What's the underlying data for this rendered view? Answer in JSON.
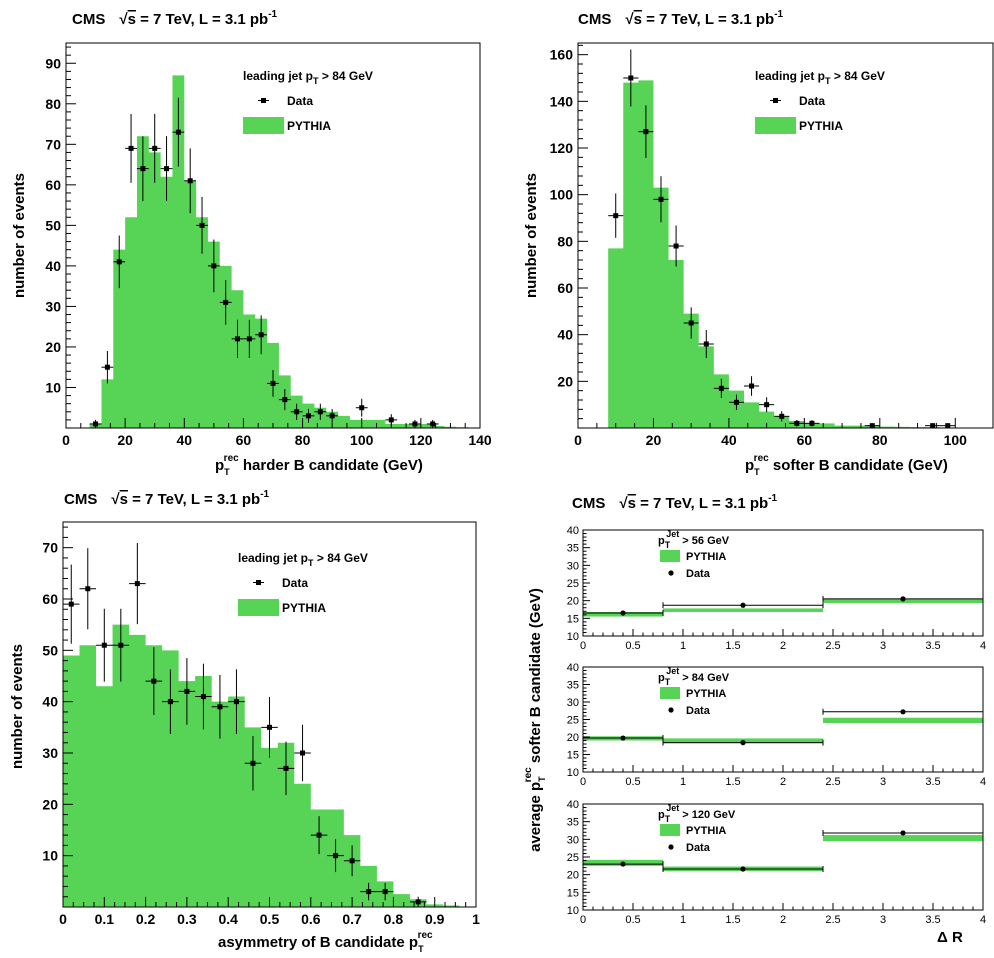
{
  "colors": {
    "mc_fill": "#57d356",
    "data": "#000000",
    "axis": "#000000"
  },
  "chart_data": [
    {
      "type": "bar",
      "id": "harder",
      "header": {
        "exp": "CMS",
        "sqrt": "√",
        "s": "s",
        "rest": " = 7 TeV, L = 3.1 pb",
        "sup": "-1"
      },
      "xlabel": {
        "p": "p",
        "sub": "T",
        "sup": "rec",
        "rest": " harder B candidate (GeV)"
      },
      "ylabel": "number of events",
      "xlim": [
        0,
        140
      ],
      "ylim": [
        0,
        95
      ],
      "xticks": [
        0,
        20,
        40,
        60,
        80,
        100,
        120,
        140
      ],
      "yticks": [
        10,
        20,
        30,
        40,
        50,
        60,
        70,
        80,
        90
      ],
      "legend": {
        "title_pre": "leading jet p",
        "title_sub": "T",
        "title_post": " > 84 GeV",
        "data_label": "Data",
        "mc_label": "PYTHIA",
        "placement": "top-right"
      },
      "mc": {
        "edges": [
          0,
          4,
          8,
          12,
          16,
          20,
          24,
          28,
          32,
          36,
          40,
          44,
          48,
          52,
          56,
          60,
          64,
          68,
          72,
          76,
          80,
          84,
          88,
          92,
          96,
          100,
          104,
          108,
          112,
          116,
          120,
          124,
          128,
          132,
          136,
          140
        ],
        "values": [
          0,
          0,
          1,
          12,
          44,
          52,
          72,
          68,
          62,
          87,
          61,
          52,
          46,
          40,
          34,
          28,
          27,
          21,
          13,
          8,
          6,
          5,
          4,
          3,
          2,
          2,
          2,
          1,
          1,
          1,
          1,
          0.5,
          0.3,
          0.2,
          0
        ]
      },
      "data": [
        {
          "x": 14,
          "y": 15,
          "err": 4,
          "xerr": 2
        },
        {
          "x": 18,
          "y": 41,
          "err": 6.5,
          "xerr": 2
        },
        {
          "x": 22,
          "y": 69,
          "err": 8.5,
          "xerr": 2
        },
        {
          "x": 26,
          "y": 64,
          "err": 8,
          "xerr": 2
        },
        {
          "x": 30,
          "y": 69,
          "err": 8.5,
          "xerr": 2
        },
        {
          "x": 34,
          "y": 64,
          "err": 8,
          "xerr": 2
        },
        {
          "x": 38,
          "y": 73,
          "err": 8.5,
          "xerr": 2
        },
        {
          "x": 42,
          "y": 61,
          "err": 8,
          "xerr": 2
        },
        {
          "x": 46,
          "y": 50,
          "err": 7,
          "xerr": 2
        },
        {
          "x": 50,
          "y": 40,
          "err": 6.5,
          "xerr": 2
        },
        {
          "x": 54,
          "y": 31,
          "err": 5.5,
          "xerr": 2
        },
        {
          "x": 58,
          "y": 22,
          "err": 4.7,
          "xerr": 2
        },
        {
          "x": 62,
          "y": 22,
          "err": 4.7,
          "xerr": 2
        },
        {
          "x": 66,
          "y": 23,
          "err": 4.8,
          "xerr": 2
        },
        {
          "x": 70,
          "y": 11,
          "err": 3.3,
          "xerr": 2
        },
        {
          "x": 74,
          "y": 7,
          "err": 2.6,
          "xerr": 2
        },
        {
          "x": 78,
          "y": 4,
          "err": 2,
          "xerr": 2
        },
        {
          "x": 82,
          "y": 3,
          "err": 1.7,
          "xerr": 2
        },
        {
          "x": 86,
          "y": 4,
          "err": 2,
          "xerr": 2
        },
        {
          "x": 90,
          "y": 3,
          "err": 1.7,
          "xerr": 2
        },
        {
          "x": 100,
          "y": 5,
          "err": 2.2,
          "xerr": 2
        },
        {
          "x": 110,
          "y": 2,
          "err": 1.4,
          "xerr": 2
        },
        {
          "x": 118,
          "y": 1,
          "err": 1,
          "xerr": 2
        },
        {
          "x": 124,
          "y": 1,
          "err": 1,
          "xerr": 2
        },
        {
          "x": 10,
          "y": 1,
          "err": 1,
          "xerr": 2
        }
      ]
    },
    {
      "type": "bar",
      "id": "softer",
      "header": {
        "exp": "CMS",
        "sqrt": "√",
        "s": "s",
        "rest": " = 7 TeV, L = 3.1 pb",
        "sup": "-1"
      },
      "xlabel": {
        "p": "p",
        "sub": "T",
        "sup": "rec",
        "rest": " softer B candidate (GeV)"
      },
      "ylabel": "number of events",
      "xlim": [
        0,
        110
      ],
      "ylim": [
        0,
        165
      ],
      "xticks": [
        0,
        20,
        40,
        60,
        80,
        100
      ],
      "yticks": [
        20,
        40,
        60,
        80,
        100,
        120,
        140,
        160
      ],
      "legend": {
        "title_pre": "leading jet p",
        "title_sub": "T",
        "title_post": " > 84 GeV",
        "data_label": "Data",
        "mc_label": "PYTHIA",
        "placement": "top-right"
      },
      "mc": {
        "edges": [
          0,
          4,
          8,
          12,
          16,
          20,
          24,
          28,
          32,
          36,
          40,
          44,
          48,
          52,
          56,
          60,
          64,
          68,
          72,
          76,
          80,
          84,
          88,
          92,
          96,
          100,
          104,
          108,
          110
        ],
        "values": [
          0,
          0,
          77,
          148,
          149,
          103,
          72,
          49,
          35,
          23,
          16,
          11,
          7,
          5,
          3,
          2,
          2,
          1,
          1,
          0.8,
          0.6,
          0.5,
          0.4,
          0.3,
          0.2,
          0.1,
          0,
          0
        ]
      },
      "data": [
        {
          "x": 10,
          "y": 91,
          "err": 9.5,
          "xerr": 2
        },
        {
          "x": 14,
          "y": 150,
          "err": 12.2,
          "xerr": 2
        },
        {
          "x": 18,
          "y": 127,
          "err": 11.3,
          "xerr": 2
        },
        {
          "x": 22,
          "y": 98,
          "err": 9.9,
          "xerr": 2
        },
        {
          "x": 26,
          "y": 78,
          "err": 8.8,
          "xerr": 2
        },
        {
          "x": 30,
          "y": 45,
          "err": 6.7,
          "xerr": 2
        },
        {
          "x": 34,
          "y": 36,
          "err": 6,
          "xerr": 2
        },
        {
          "x": 38,
          "y": 17,
          "err": 4.1,
          "xerr": 2
        },
        {
          "x": 42,
          "y": 11,
          "err": 3.3,
          "xerr": 2
        },
        {
          "x": 46,
          "y": 18,
          "err": 4.2,
          "xerr": 2
        },
        {
          "x": 50,
          "y": 10,
          "err": 3.2,
          "xerr": 2
        },
        {
          "x": 54,
          "y": 5,
          "err": 2.2,
          "xerr": 2
        },
        {
          "x": 58,
          "y": 2,
          "err": 1.4,
          "xerr": 2
        },
        {
          "x": 62,
          "y": 2,
          "err": 1.4,
          "xerr": 2
        },
        {
          "x": 78,
          "y": 1,
          "err": 1,
          "xerr": 2
        },
        {
          "x": 94,
          "y": 1,
          "err": 1,
          "xerr": 2
        },
        {
          "x": 98,
          "y": 1,
          "err": 1,
          "xerr": 2
        }
      ]
    },
    {
      "type": "bar",
      "id": "asymmetry",
      "header": {
        "exp": "CMS",
        "sqrt": "√",
        "s": "s",
        "rest": " = 7 TeV, L = 3.1 pb",
        "sup": "-1"
      },
      "xlabel": {
        "pre": "asymmetry of B candidate ",
        "p": "p",
        "sub": "T",
        "sup": "rec"
      },
      "ylabel": "number of events",
      "xlim": [
        0,
        1
      ],
      "ylim": [
        0,
        75
      ],
      "xticks": [
        0,
        0.1,
        0.2,
        0.3,
        0.4,
        0.5,
        0.6,
        0.7,
        0.8,
        0.9,
        1
      ],
      "xtick_labels": [
        "0",
        "0.1",
        "0.2",
        "0.3",
        "0.4",
        "0.5",
        "0.6",
        "0.7",
        "0.8",
        "0.9",
        "1"
      ],
      "yticks": [
        10,
        20,
        30,
        40,
        50,
        60,
        70
      ],
      "legend": {
        "title_pre": "leading jet p",
        "title_sub": "T",
        "title_post": " > 84 GeV",
        "data_label": "Data",
        "mc_label": "PYTHIA",
        "placement": "top-right"
      },
      "mc": {
        "edges": [
          0,
          0.04,
          0.08,
          0.12,
          0.16,
          0.2,
          0.24,
          0.28,
          0.32,
          0.36,
          0.4,
          0.44,
          0.48,
          0.52,
          0.56,
          0.6,
          0.64,
          0.68,
          0.72,
          0.76,
          0.8,
          0.84,
          0.88,
          0.92,
          0.96,
          1
        ],
        "values": [
          49,
          51,
          43,
          55,
          53,
          51,
          50,
          44,
          45,
          40,
          41,
          35,
          31,
          32,
          24,
          19,
          19,
          14,
          8,
          5,
          2.5,
          1.5,
          0.5,
          0.3,
          0
        ]
      },
      "data": [
        {
          "x": 0.02,
          "y": 59,
          "err": 7.7,
          "xerr": 0.02
        },
        {
          "x": 0.06,
          "y": 62,
          "err": 7.9,
          "xerr": 0.02
        },
        {
          "x": 0.1,
          "y": 51,
          "err": 7.1,
          "xerr": 0.02
        },
        {
          "x": 0.14,
          "y": 51,
          "err": 7.1,
          "xerr": 0.02
        },
        {
          "x": 0.18,
          "y": 63,
          "err": 7.9,
          "xerr": 0.02
        },
        {
          "x": 0.22,
          "y": 44,
          "err": 6.6,
          "xerr": 0.02
        },
        {
          "x": 0.26,
          "y": 40,
          "err": 6.3,
          "xerr": 0.02
        },
        {
          "x": 0.3,
          "y": 42,
          "err": 6.5,
          "xerr": 0.02
        },
        {
          "x": 0.34,
          "y": 41,
          "err": 6.4,
          "xerr": 0.02
        },
        {
          "x": 0.38,
          "y": 39,
          "err": 6.2,
          "xerr": 0.02
        },
        {
          "x": 0.42,
          "y": 40,
          "err": 6.3,
          "xerr": 0.02
        },
        {
          "x": 0.46,
          "y": 28,
          "err": 5.3,
          "xerr": 0.02
        },
        {
          "x": 0.5,
          "y": 35,
          "err": 5.9,
          "xerr": 0.02
        },
        {
          "x": 0.54,
          "y": 27,
          "err": 5.2,
          "xerr": 0.02
        },
        {
          "x": 0.58,
          "y": 30,
          "err": 5.5,
          "xerr": 0.02
        },
        {
          "x": 0.62,
          "y": 14,
          "err": 3.7,
          "xerr": 0.02
        },
        {
          "x": 0.66,
          "y": 10,
          "err": 3.2,
          "xerr": 0.02
        },
        {
          "x": 0.7,
          "y": 9,
          "err": 3,
          "xerr": 0.02
        },
        {
          "x": 0.74,
          "y": 3,
          "err": 1.7,
          "xerr": 0.02
        },
        {
          "x": 0.78,
          "y": 3,
          "err": 1.7,
          "xerr": 0.02
        },
        {
          "x": 0.86,
          "y": 1,
          "err": 1,
          "xerr": 0.02
        }
      ]
    },
    {
      "type": "bar",
      "id": "deltaR",
      "header": {
        "exp": "CMS",
        "sqrt": "√",
        "s": "s",
        "rest": " = 7 TeV, L = 3.1 pb",
        "sup": "-1"
      },
      "xlabel": "Δ R",
      "ylabel": {
        "pre": "average p",
        "sup": "rec",
        "sub": "T",
        "post": " softer B candidate (GeV)"
      },
      "xlim": [
        0,
        4
      ],
      "xticks": [
        0,
        0.5,
        1,
        1.5,
        2,
        2.5,
        3,
        3.5,
        4
      ],
      "xtick_labels": [
        "0",
        "0.5",
        "1",
        "1.5",
        "2",
        "2.5",
        "3",
        "3.5",
        "4"
      ],
      "bins": [
        0,
        0.8,
        2.4,
        4
      ],
      "panels": [
        {
          "legend": {
            "title_pre": "p",
            "title_sub": "T",
            "title_sup": "Jet",
            "title_post": " > 56 GeV",
            "mc_label": "PYTHIA",
            "data_label": "Data"
          },
          "ylim": [
            10,
            40
          ],
          "yticks": [
            10,
            15,
            20,
            25,
            30,
            35,
            40
          ],
          "mc": [
            {
              "lo": 15.5,
              "hi": 16.8
            },
            {
              "lo": 16.8,
              "hi": 17.8
            },
            {
              "lo": 19.3,
              "hi": 20.6
            }
          ],
          "data": [
            {
              "x": 0.4,
              "y": 16.5,
              "err": 0.4
            },
            {
              "x": 1.6,
              "y": 18.7,
              "err": 0.6
            },
            {
              "x": 3.2,
              "y": 20.5,
              "err": 0.4
            }
          ]
        },
        {
          "legend": {
            "title_pre": "p",
            "title_sub": "T",
            "title_sup": "Jet",
            "title_post": " > 84 GeV",
            "mc_label": "PYTHIA",
            "data_label": "Data"
          },
          "ylim": [
            10,
            40
          ],
          "yticks": [
            10,
            15,
            20,
            25,
            30,
            35,
            40
          ],
          "mc": [
            {
              "lo": 19,
              "hi": 20.2
            },
            {
              "lo": 18.2,
              "hi": 19.6
            },
            {
              "lo": 24,
              "hi": 25.5
            }
          ],
          "data": [
            {
              "x": 0.4,
              "y": 19.7,
              "err": 0.4
            },
            {
              "x": 1.6,
              "y": 18.4,
              "err": 0.5
            },
            {
              "x": 3.2,
              "y": 27.2,
              "err": 0.5
            }
          ]
        },
        {
          "legend": {
            "title_pre": "p",
            "title_sub": "T",
            "title_sup": "Jet",
            "title_post": " > 120 GeV",
            "mc_label": "PYTHIA",
            "data_label": "Data"
          },
          "ylim": [
            10,
            40
          ],
          "yticks": [
            10,
            15,
            20,
            25,
            30,
            35,
            40
          ],
          "mc": [
            {
              "lo": 22.5,
              "hi": 24.2
            },
            {
              "lo": 21,
              "hi": 22.3
            },
            {
              "lo": 29.5,
              "hi": 31.2
            }
          ],
          "data": [
            {
              "x": 0.4,
              "y": 23,
              "err": 0.4
            },
            {
              "x": 1.6,
              "y": 21.6,
              "err": 0.4
            },
            {
              "x": 3.2,
              "y": 31.8,
              "err": 0.6
            }
          ]
        }
      ]
    }
  ]
}
